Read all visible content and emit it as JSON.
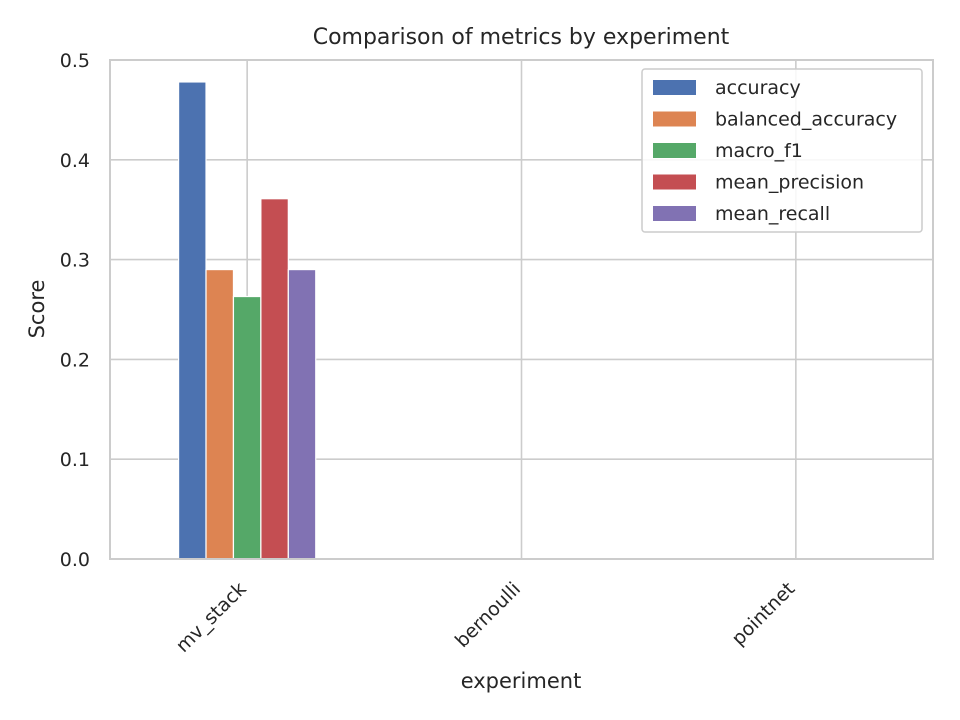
{
  "chart_data": {
    "type": "bar",
    "title": "Comparison of metrics by experiment",
    "xlabel": "experiment",
    "ylabel": "Score",
    "ylim": [
      0,
      0.5
    ],
    "yticks": [
      "0.0",
      "0.1",
      "0.2",
      "0.3",
      "0.4",
      "0.5"
    ],
    "categories": [
      "mv_stack",
      "bernoulli",
      "pointnet"
    ],
    "series": [
      {
        "name": "accuracy",
        "color": "#4c72b0",
        "values": [
          0.478,
          0,
          0
        ]
      },
      {
        "name": "balanced_accuracy",
        "color": "#dd8452",
        "values": [
          0.29,
          0,
          0
        ]
      },
      {
        "name": "macro_f1",
        "color": "#55a868",
        "values": [
          0.263,
          0,
          0
        ]
      },
      {
        "name": "mean_precision",
        "color": "#c44e52",
        "values": [
          0.361,
          0,
          0
        ]
      },
      {
        "name": "mean_recall",
        "color": "#8172b3",
        "values": [
          0.29,
          0,
          0
        ]
      }
    ],
    "grid": true,
    "legend_position": "top-right"
  }
}
